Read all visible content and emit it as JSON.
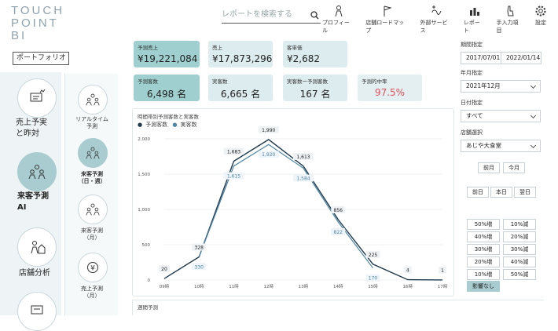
{
  "logo": {
    "line1": "TOUCH",
    "line2": "POINT",
    "line3": "BI"
  },
  "search": {
    "placeholder": "レポートを検索する"
  },
  "topnav": [
    {
      "label": "プロフィール",
      "icon": "person-icon"
    },
    {
      "label": "店舗ロードマップ",
      "icon": "flag-icon"
    },
    {
      "label": "外部サービス",
      "icon": "alpha-plus-icon"
    },
    {
      "label": "レポート",
      "icon": "bar-chart-icon"
    },
    {
      "label": "手入力項目",
      "icon": "hand-pointer-icon"
    },
    {
      "label": "設定",
      "icon": "gear-icon"
    }
  ],
  "portfolio_label": "ポートフォリオ",
  "left_menu": [
    {
      "label1": "売上予実",
      "label2": "と昨対",
      "icon": "chat-chart-icon"
    },
    {
      "label1": "来客予測",
      "label2": "AI",
      "icon": "people-group-icon"
    },
    {
      "label1": "店舗分析",
      "label2": "",
      "icon": "person-house-icon"
    }
  ],
  "sub_menu": [
    {
      "label1": "リアルタイム",
      "label2": "予測",
      "icon": "people-group-icon"
    },
    {
      "label1": "来客予測",
      "label2": "（日・週）",
      "icon": "people-group-icon"
    },
    {
      "label1": "来客予測",
      "label2": "（月）",
      "icon": "people-group-icon"
    },
    {
      "label1": "売上予測",
      "label2": "（月）",
      "icon": "yen-icon"
    }
  ],
  "kpis": [
    {
      "title": "予測売上",
      "value": "¥19,221,084"
    },
    {
      "title": "売上",
      "value": "¥17,873,296"
    },
    {
      "title": "客単価",
      "value": "¥2,682"
    },
    {
      "title": "予測客数",
      "value": "6,498 名"
    },
    {
      "title": "実客数",
      "value": "6,665 名"
    },
    {
      "title": "実客数ー予測客数",
      "value": "167 名"
    },
    {
      "title": "予測的中率",
      "value": "97.5%"
    }
  ],
  "chart_title": "時間帯別予測客数と実客数",
  "chart_data": {
    "type": "line",
    "categories": [
      "09時",
      "10時",
      "11時",
      "12時",
      "13時",
      "14時",
      "15時",
      "16時",
      "17時"
    ],
    "series": [
      {
        "name": "予測客数",
        "values": [
          20,
          328,
          1683,
          1990,
          1613,
          856,
          225,
          4,
          1
        ],
        "color": "#1f3a4d"
      },
      {
        "name": "実客数",
        "values": [
          null,
          330,
          1615,
          1920,
          1584,
          822,
          170,
          null,
          null
        ],
        "color": "#4e86a6"
      }
    ],
    "ylim": [
      0,
      2000
    ],
    "yticks": [
      "2,000",
      "1,500",
      "1,000",
      "500",
      "0"
    ],
    "labels_pred": [
      "20",
      "328",
      "1,683",
      "1,990",
      "1,613",
      "856",
      "225",
      "4",
      "1"
    ],
    "labels_actual": [
      "330",
      "1,615",
      "1,920",
      "1,584",
      "822",
      "170"
    ]
  },
  "bottom_title": "週間予測",
  "right": {
    "period_label": "期間指定",
    "date_from": "2017/07/01",
    "date_to": "2022/01/14",
    "month_label": "年月指定",
    "month_value": "2021年12月",
    "date_label": "日付指定",
    "date_value": "すべて",
    "store_label": "店舗選択",
    "store_value": "あじや大食堂",
    "prev_month": "前月",
    "this_month": "今月",
    "prev_day": "前日",
    "today": "本日",
    "next_day": "翌日",
    "adjust": [
      "50%増",
      "10%減",
      "40%増",
      "20%減",
      "30%増",
      "30%減",
      "20%増",
      "40%減",
      "10%増",
      "50%減"
    ],
    "no_effect": "影響なし"
  }
}
